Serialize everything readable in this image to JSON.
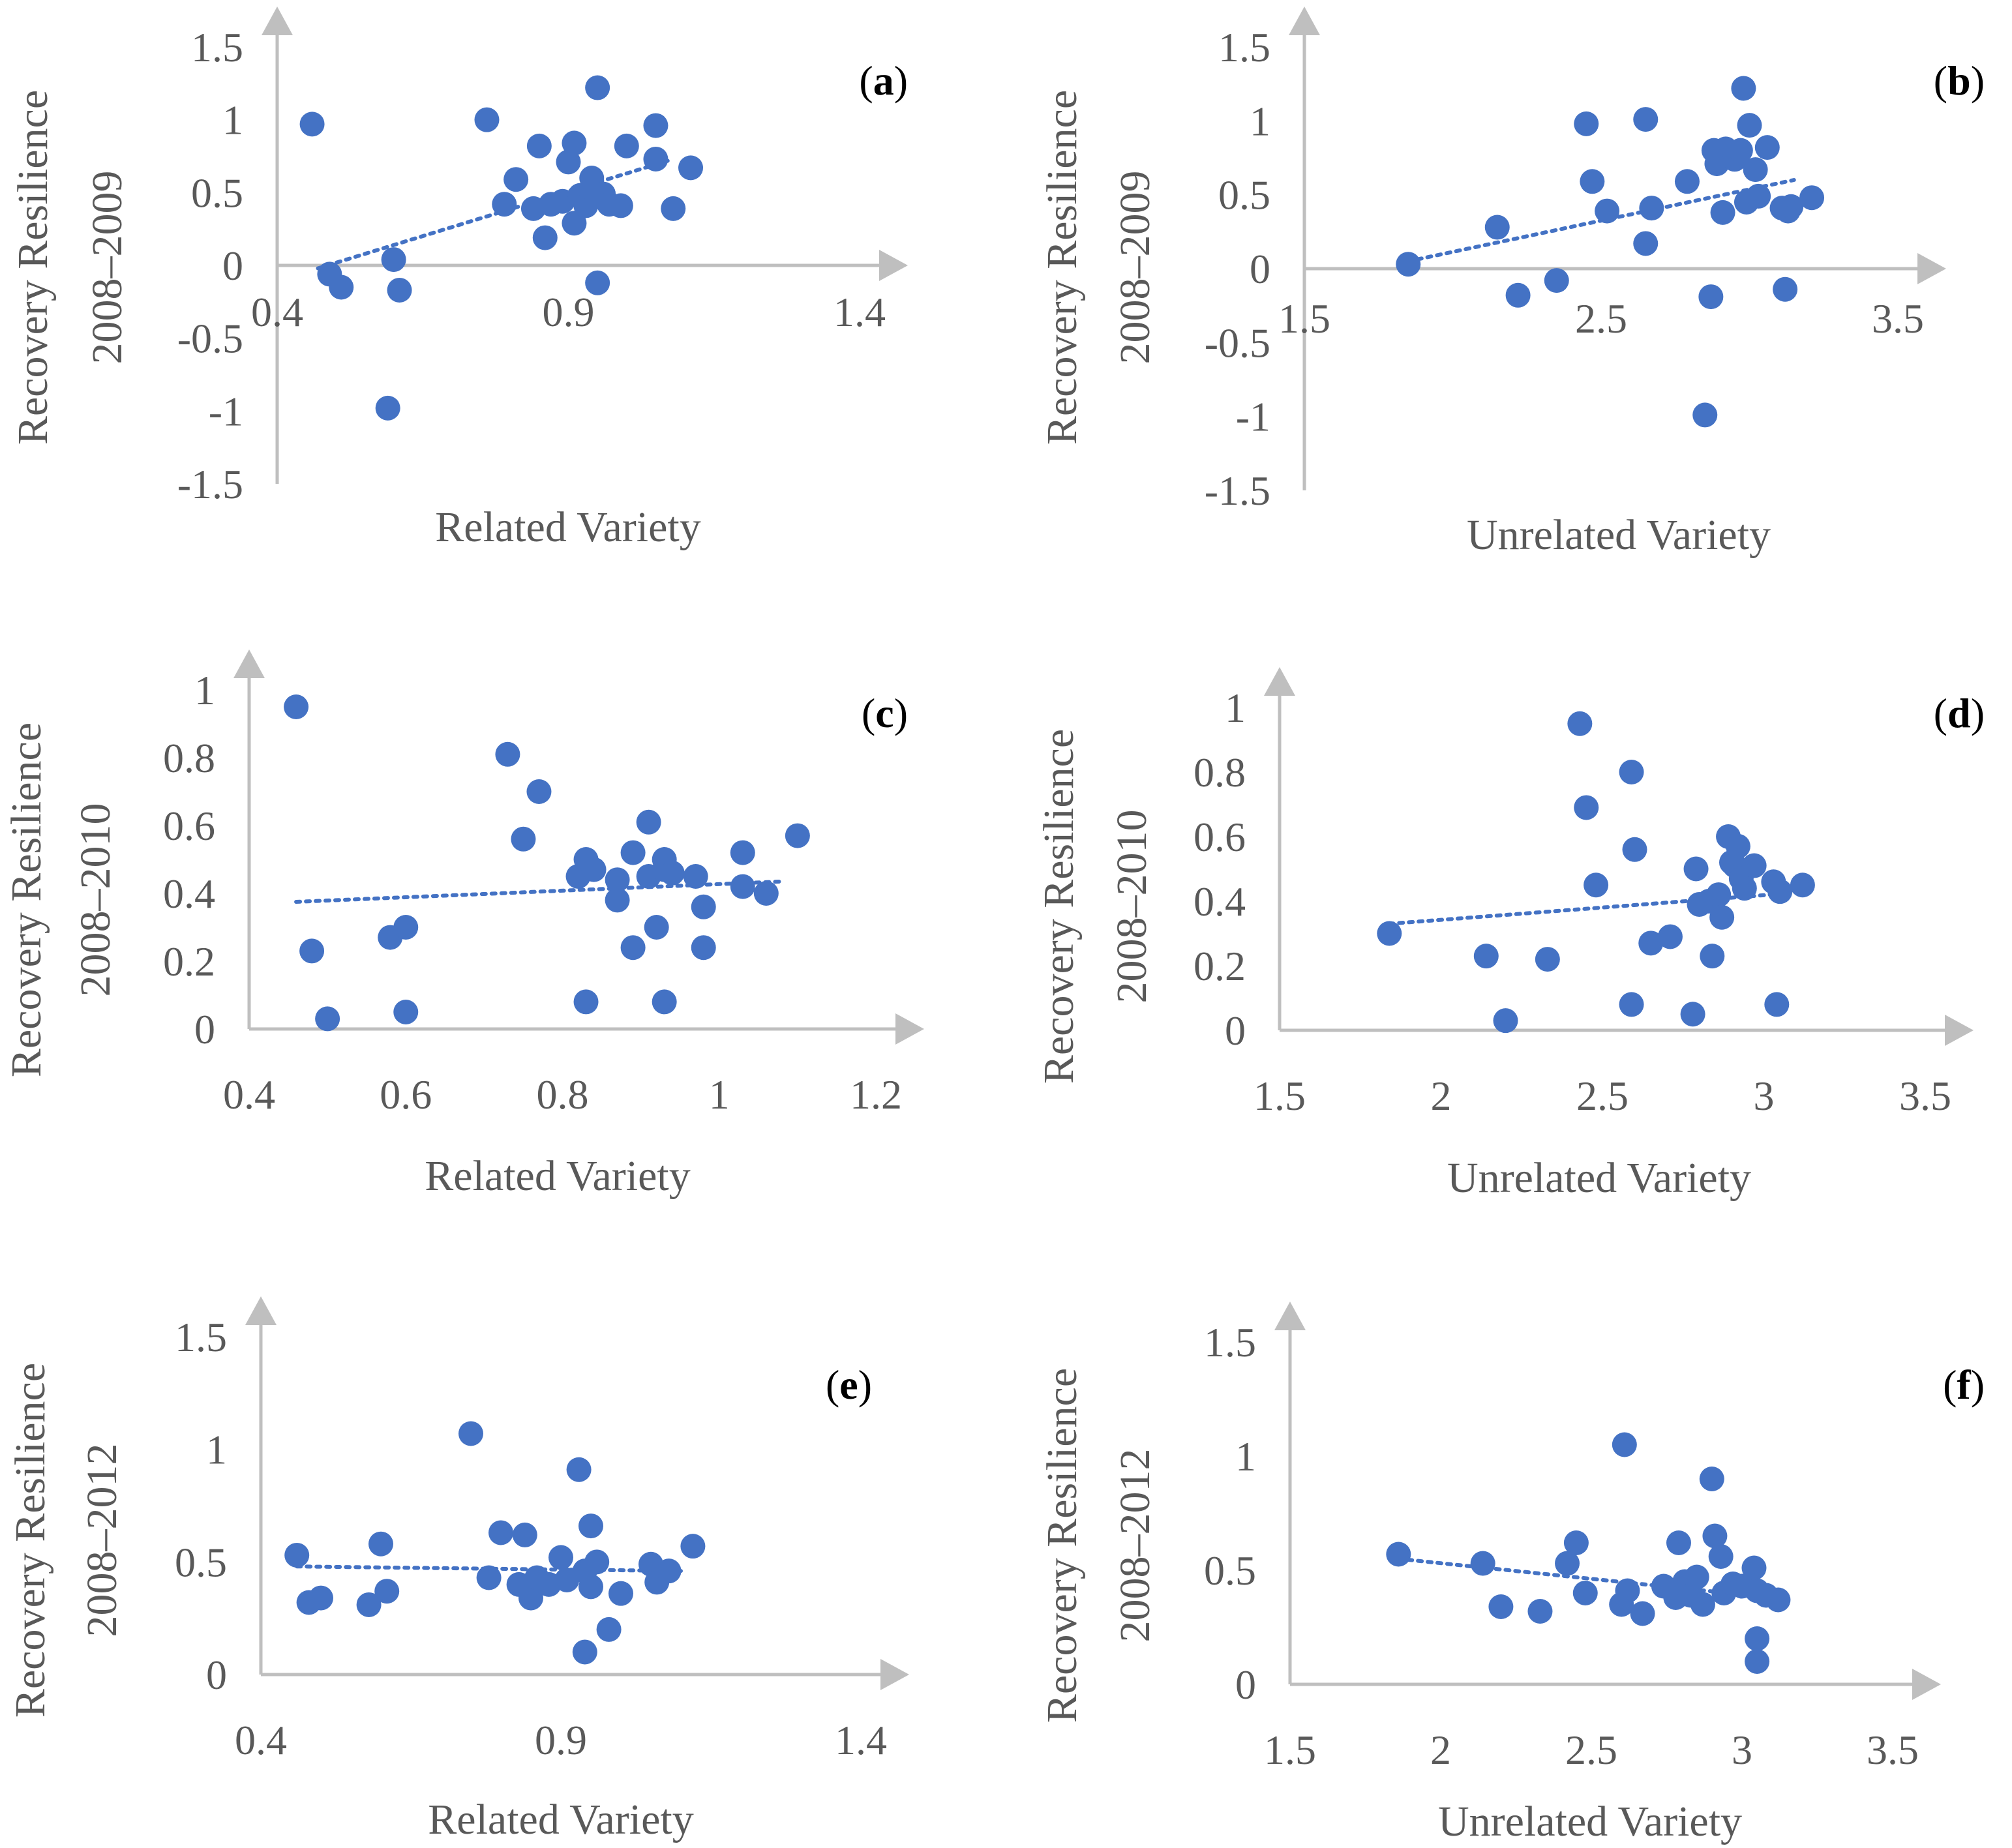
{
  "figure": {
    "background": "#ffffff",
    "marker_color": "#4472C4",
    "axis_color": "#BFBFBF",
    "text_color": "#595959"
  },
  "chart_data": [
    {
      "type": "scatter",
      "panel": "a",
      "xlabel": "Related Variety",
      "ylabel": [
        "Recovery Resilience",
        "2008–2009"
      ],
      "xlim": [
        0.4,
        1.4
      ],
      "ylim": [
        -1.5,
        1.5
      ],
      "xticks": [
        "0.4",
        "0.9",
        "1.4"
      ],
      "yticks": [
        "1.5",
        "1",
        "0.5",
        "0",
        "-0.5",
        "-1",
        "-1.5"
      ],
      "trendline": {
        "x": [
          0.47,
          1.08
        ],
        "y": [
          -0.02,
          0.73
        ]
      },
      "points": [
        [
          0.46,
          0.97
        ],
        [
          0.49,
          -0.06
        ],
        [
          0.51,
          -0.15
        ],
        [
          0.6,
          0.04
        ],
        [
          0.61,
          -0.17
        ],
        [
          0.59,
          -0.98
        ],
        [
          0.76,
          1.0
        ],
        [
          0.79,
          0.42
        ],
        [
          0.81,
          0.59
        ],
        [
          0.84,
          0.39
        ],
        [
          0.85,
          0.82
        ],
        [
          0.86,
          0.19
        ],
        [
          0.87,
          0.42
        ],
        [
          0.89,
          0.44
        ],
        [
          0.9,
          0.71
        ],
        [
          0.91,
          0.29
        ],
        [
          0.91,
          0.84
        ],
        [
          0.92,
          0.48
        ],
        [
          0.93,
          0.41
        ],
        [
          0.94,
          0.53
        ],
        [
          0.94,
          0.6
        ],
        [
          0.95,
          1.22
        ],
        [
          0.95,
          -0.12
        ],
        [
          0.96,
          0.49
        ],
        [
          0.97,
          0.42
        ],
        [
          0.99,
          0.41
        ],
        [
          1.0,
          0.82
        ],
        [
          1.05,
          0.73
        ],
        [
          1.05,
          0.96
        ],
        [
          1.08,
          0.39
        ],
        [
          1.11,
          0.67
        ]
      ]
    },
    {
      "type": "scatter",
      "panel": "b",
      "xlabel": "Unrelated Variety",
      "ylabel": [
        "Recovery Resilience",
        "2008–2009"
      ],
      "xlim": [
        1.5,
        3.5
      ],
      "ylim": [
        -1.5,
        1.5
      ],
      "xticks": [
        "1.5",
        "2.5",
        "3.5"
      ],
      "yticks": [
        "1.5",
        "1",
        "0.5",
        "0",
        "-0.5",
        "-1",
        "-1.5"
      ],
      "trendline": {
        "x": [
          1.85,
          3.15
        ],
        "y": [
          0.05,
          0.6
        ]
      },
      "points": [
        [
          1.85,
          0.03
        ],
        [
          2.15,
          0.28
        ],
        [
          2.22,
          -0.18
        ],
        [
          2.35,
          -0.08
        ],
        [
          2.45,
          0.98
        ],
        [
          2.47,
          0.59
        ],
        [
          2.52,
          0.39
        ],
        [
          2.65,
          1.01
        ],
        [
          2.65,
          0.17
        ],
        [
          2.67,
          0.41
        ],
        [
          2.79,
          0.59
        ],
        [
          2.85,
          -0.99
        ],
        [
          2.87,
          -0.19
        ],
        [
          2.88,
          0.8
        ],
        [
          2.89,
          0.71
        ],
        [
          2.91,
          0.38
        ],
        [
          2.92,
          0.81
        ],
        [
          2.95,
          0.74
        ],
        [
          2.97,
          0.8
        ],
        [
          2.98,
          1.22
        ],
        [
          2.99,
          0.45
        ],
        [
          3.0,
          0.97
        ],
        [
          3.02,
          0.67
        ],
        [
          3.03,
          0.49
        ],
        [
          3.06,
          0.82
        ],
        [
          3.11,
          0.41
        ],
        [
          3.12,
          -0.14
        ],
        [
          3.13,
          0.39
        ],
        [
          3.14,
          0.42
        ],
        [
          3.21,
          0.48
        ]
      ]
    },
    {
      "type": "scatter",
      "panel": "c",
      "xlabel": "Related Variety",
      "ylabel": [
        "Recovery Resilience",
        "2008–2010"
      ],
      "xlim": [
        0.4,
        1.2
      ],
      "ylim": [
        0,
        1
      ],
      "xticks": [
        "0.4",
        "0.6",
        "0.8",
        "1",
        "1.2"
      ],
      "yticks": [
        "1",
        "0.8",
        "0.6",
        "0.4",
        "0.2",
        "0"
      ],
      "trendline": {
        "x": [
          0.46,
          1.08
        ],
        "y": [
          0.375,
          0.435
        ]
      },
      "points": [
        [
          0.46,
          0.95
        ],
        [
          0.48,
          0.23
        ],
        [
          0.5,
          0.03
        ],
        [
          0.58,
          0.27
        ],
        [
          0.6,
          0.3
        ],
        [
          0.6,
          0.05
        ],
        [
          0.73,
          0.81
        ],
        [
          0.75,
          0.56
        ],
        [
          0.77,
          0.7
        ],
        [
          0.82,
          0.45
        ],
        [
          0.83,
          0.5
        ],
        [
          0.83,
          0.08
        ],
        [
          0.84,
          0.47
        ],
        [
          0.87,
          0.44
        ],
        [
          0.87,
          0.38
        ],
        [
          0.89,
          0.52
        ],
        [
          0.89,
          0.24
        ],
        [
          0.91,
          0.45
        ],
        [
          0.91,
          0.61
        ],
        [
          0.92,
          0.3
        ],
        [
          0.93,
          0.5
        ],
        [
          0.93,
          0.47
        ],
        [
          0.93,
          0.08
        ],
        [
          0.94,
          0.46
        ],
        [
          0.97,
          0.45
        ],
        [
          0.98,
          0.36
        ],
        [
          0.98,
          0.24
        ],
        [
          1.03,
          0.42
        ],
        [
          1.03,
          0.52
        ],
        [
          1.06,
          0.4
        ],
        [
          1.1,
          0.57
        ]
      ]
    },
    {
      "type": "scatter",
      "panel": "d",
      "xlabel": "Unrelated Variety",
      "ylabel": [
        "Recovery Resilience",
        "2008–2010"
      ],
      "xlim": [
        1.5,
        3.5
      ],
      "ylim": [
        0,
        1
      ],
      "xticks": [
        "1.5",
        "2",
        "2.5",
        "3",
        "3.5"
      ],
      "yticks": [
        "1",
        "0.8",
        "0.6",
        "0.4",
        "0.2",
        "0"
      ],
      "trendline": {
        "x": [
          1.84,
          3.02
        ],
        "y": [
          0.33,
          0.42
        ]
      },
      "points": [
        [
          1.84,
          0.3
        ],
        [
          2.14,
          0.23
        ],
        [
          2.2,
          0.03
        ],
        [
          2.33,
          0.22
        ],
        [
          2.43,
          0.95
        ],
        [
          2.45,
          0.69
        ],
        [
          2.48,
          0.45
        ],
        [
          2.59,
          0.8
        ],
        [
          2.59,
          0.08
        ],
        [
          2.6,
          0.56
        ],
        [
          2.65,
          0.27
        ],
        [
          2.71,
          0.29
        ],
        [
          2.78,
          0.05
        ],
        [
          2.79,
          0.5
        ],
        [
          2.8,
          0.39
        ],
        [
          2.83,
          0.4
        ],
        [
          2.84,
          0.23
        ],
        [
          2.86,
          0.42
        ],
        [
          2.87,
          0.35
        ],
        [
          2.89,
          0.6
        ],
        [
          2.9,
          0.52
        ],
        [
          2.91,
          0.51
        ],
        [
          2.92,
          0.57
        ],
        [
          2.93,
          0.47
        ],
        [
          2.94,
          0.44
        ],
        [
          2.97,
          0.51
        ],
        [
          3.03,
          0.46
        ],
        [
          3.04,
          0.08
        ],
        [
          3.05,
          0.43
        ],
        [
          3.12,
          0.45
        ]
      ]
    },
    {
      "type": "scatter",
      "panel": "e",
      "xlabel": "Related Variety",
      "ylabel": [
        "Recovery Resilience",
        "2008–2012"
      ],
      "xlim": [
        0.4,
        1.4
      ],
      "ylim": [
        0,
        1.5
      ],
      "xticks": [
        "0.4",
        "0.9",
        "1.4"
      ],
      "yticks": [
        "1.5",
        "1",
        "0.5",
        "0"
      ],
      "trendline": {
        "x": [
          0.46,
          1.1
        ],
        "y": [
          0.48,
          0.46
        ]
      },
      "points": [
        [
          0.46,
          0.53
        ],
        [
          0.48,
          0.32
        ],
        [
          0.5,
          0.34
        ],
        [
          0.58,
          0.31
        ],
        [
          0.6,
          0.58
        ],
        [
          0.61,
          0.37
        ],
        [
          0.75,
          1.07
        ],
        [
          0.78,
          0.43
        ],
        [
          0.8,
          0.63
        ],
        [
          0.83,
          0.4
        ],
        [
          0.84,
          0.62
        ],
        [
          0.85,
          0.34
        ],
        [
          0.86,
          0.43
        ],
        [
          0.88,
          0.4
        ],
        [
          0.9,
          0.52
        ],
        [
          0.91,
          0.42
        ],
        [
          0.93,
          0.91
        ],
        [
          0.94,
          0.46
        ],
        [
          0.94,
          0.1
        ],
        [
          0.95,
          0.66
        ],
        [
          0.95,
          0.39
        ],
        [
          0.96,
          0.5
        ],
        [
          0.98,
          0.2
        ],
        [
          1.0,
          0.36
        ],
        [
          1.05,
          0.49
        ],
        [
          1.06,
          0.41
        ],
        [
          1.08,
          0.46
        ],
        [
          1.12,
          0.57
        ]
      ]
    },
    {
      "type": "scatter",
      "panel": "f",
      "xlabel": "Unrelated Variety",
      "ylabel": [
        "Recovery Resilience",
        "2008–2012"
      ],
      "xlim": [
        1.5,
        3.5
      ],
      "ylim": [
        0,
        1.5
      ],
      "xticks": [
        "1.5",
        "2",
        "2.5",
        "3",
        "3.5"
      ],
      "yticks": [
        "1.5",
        "1",
        "0.5",
        "0"
      ],
      "trendline": {
        "x": [
          1.86,
          3.1
        ],
        "y": [
          0.55,
          0.38
        ]
      },
      "points": [
        [
          1.86,
          0.57
        ],
        [
          2.14,
          0.53
        ],
        [
          2.2,
          0.34
        ],
        [
          2.33,
          0.32
        ],
        [
          2.42,
          0.53
        ],
        [
          2.45,
          0.62
        ],
        [
          2.48,
          0.4
        ],
        [
          2.6,
          0.35
        ],
        [
          2.61,
          1.05
        ],
        [
          2.62,
          0.41
        ],
        [
          2.67,
          0.31
        ],
        [
          2.74,
          0.43
        ],
        [
          2.78,
          0.38
        ],
        [
          2.79,
          0.62
        ],
        [
          2.81,
          0.45
        ],
        [
          2.83,
          0.39
        ],
        [
          2.85,
          0.47
        ],
        [
          2.87,
          0.35
        ],
        [
          2.9,
          0.9
        ],
        [
          2.91,
          0.65
        ],
        [
          2.93,
          0.56
        ],
        [
          2.94,
          0.4
        ],
        [
          2.97,
          0.44
        ],
        [
          3.0,
          0.43
        ],
        [
          3.04,
          0.51
        ],
        [
          3.05,
          0.41
        ],
        [
          3.05,
          0.2
        ],
        [
          3.05,
          0.1
        ],
        [
          3.08,
          0.39
        ],
        [
          3.12,
          0.37
        ]
      ]
    }
  ]
}
